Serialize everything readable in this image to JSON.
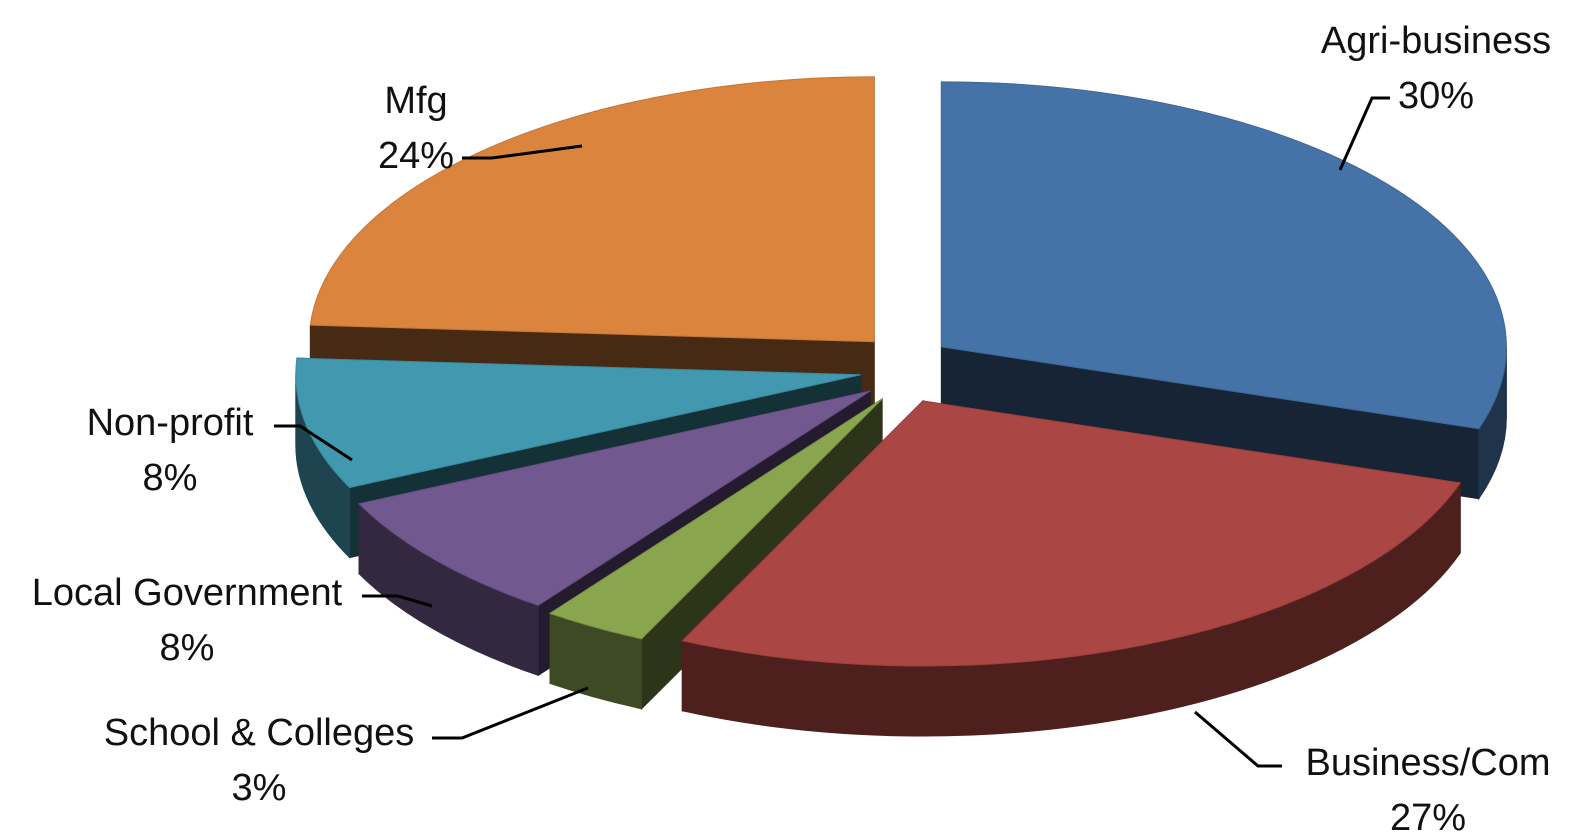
{
  "chart_data": {
    "type": "pie",
    "style": "3d-exploded",
    "title": "",
    "legend": "none",
    "slices": [
      {
        "label": "Agri-business",
        "value": 30,
        "value_label": "30%",
        "color": "#4572A7"
      },
      {
        "label": "Business/Com",
        "value": 27,
        "value_label": "27%",
        "color": "#AA4643"
      },
      {
        "label": "School & Colleges",
        "value": 3,
        "value_label": "3%",
        "color": "#89A54E"
      },
      {
        "label": "Local Government",
        "value": 8,
        "value_label": "8%",
        "color": "#71588F"
      },
      {
        "label": "Non-profit",
        "value": 8,
        "value_label": "8%",
        "color": "#4198AF"
      },
      {
        "label": "Mfg",
        "value": 24,
        "value_label": "24%",
        "color": "#DB843D"
      }
    ]
  }
}
